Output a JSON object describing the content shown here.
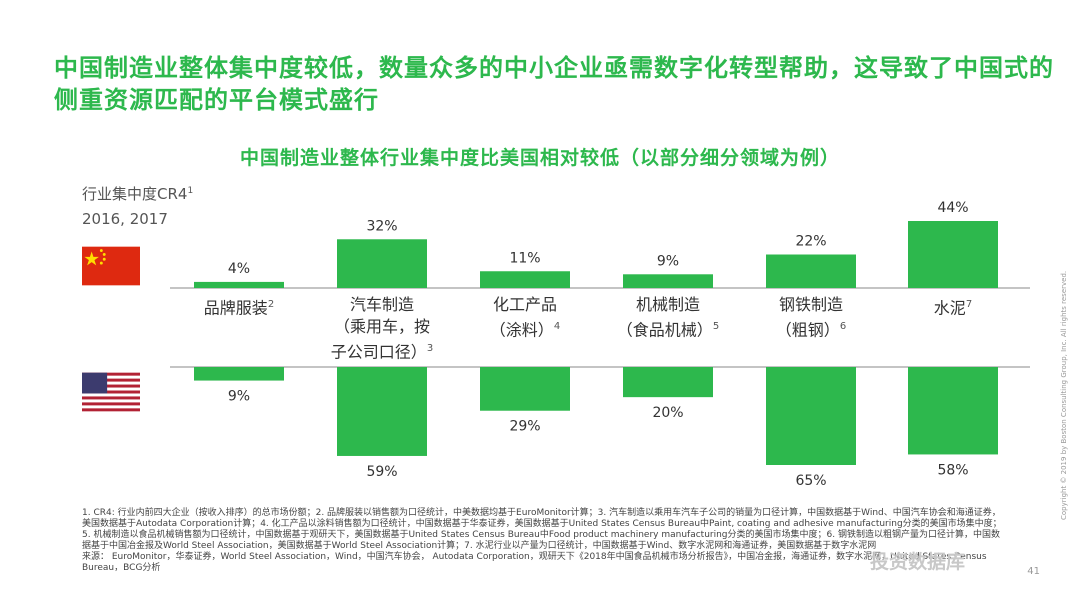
{
  "title": "中国制造业整体集中度较低，数量众多的中小企业亟需数字化转型帮助，这导致了中国式的侧重资源匹配的平台模式盛行",
  "subtitle": "中国制造业整体行业集中度比美国相对较低（以部分细分领域为例）",
  "axis": {
    "label": "行业集中度CR4",
    "sup": "1",
    "years": "2016, 2017"
  },
  "flags": {
    "china": "china-flag",
    "usa": "usa-flag"
  },
  "colors": {
    "bar": "#2db84d",
    "text": "#333333",
    "divider": "#888888"
  },
  "chart_data": {
    "type": "bar",
    "title": "中国制造业整体行业集中度比美国相对较低（以部分细分领域为例）",
    "ylabel": "行业集中度CR4",
    "categories": [
      "品牌服装",
      "汽车制造（乘用车，按子公司口径）",
      "化工产品（涂料）",
      "机械制造（食品机械）",
      "钢铁制造（粗钢）",
      "水泥"
    ],
    "category_lines": [
      {
        "lines": [
          "品牌服装"
        ],
        "sup": "2"
      },
      {
        "lines": [
          "汽车制造",
          "（乘用车，按",
          "子公司口径）"
        ],
        "sup": "3"
      },
      {
        "lines": [
          "化工产品",
          "（涂料）"
        ],
        "sup": "4"
      },
      {
        "lines": [
          "机械制造",
          "（食品机械）"
        ],
        "sup": "5"
      },
      {
        "lines": [
          "钢铁制造",
          "（粗钢）"
        ],
        "sup": "6"
      },
      {
        "lines": [
          "水泥"
        ],
        "sup": "7"
      }
    ],
    "series": [
      {
        "name": "China",
        "values": [
          4,
          32,
          11,
          9,
          22,
          44
        ],
        "labels": [
          "4%",
          "32%",
          "11%",
          "9%",
          "22%",
          "44%"
        ]
      },
      {
        "name": "USA",
        "values": [
          9,
          59,
          29,
          20,
          65,
          58
        ],
        "labels": [
          "9%",
          "59%",
          "29%",
          "20%",
          "65%",
          "58%"
        ]
      }
    ],
    "ylim": [
      0,
      65
    ]
  },
  "footnotes": [
    "1. CR4: 行业内前四大企业（按收入排序）的总市场份额；2. 品牌服装以销售额为口径统计，中美数据均基于EuroMonitor计算；3. 汽车制造以乘用车汽车子公司的销量为口径计算，中国数据基于Wind、中国汽车协会和海通证券，美国数据基于Autodata Corporation计算；4. 化工产品以涂料销售额为口径统计，中国数据基于华泰证券，美国数据基于United States Census Bureau中Paint, coating and adhesive manufacturing分类的美国市场集中度；5. 机械制造以食品机械销售额为口径统计，中国数据基于观研天下，美国数据基于United States Census Bureau中Food product machinery manufacturing分类的美国市场集中度；6. 钢铁制造以粗钢产量为口径计算，中国数据基于中国冶金报及World Steel Association，美国数据基于World Steel Association计算；7. 水泥行业以产量为口径统计，中国数据基于Wind、数字水泥网和海通证券，美国数据基于数字水泥网",
    "来源： EuroMonitor，华泰证券，World Steel Association，Wind，中国汽车协会， Autodata Corporation，观研天下《2018年中国食品机械市场分析报告》，中国冶金报，海通证券，数字水泥网，United States Census Bureau，BCG分析"
  ],
  "page_number": "41",
  "copyright": "Copyright © 2019 by Boston Consulting Group, Inc. All rights reserved.",
  "watermark": "投资数据库"
}
